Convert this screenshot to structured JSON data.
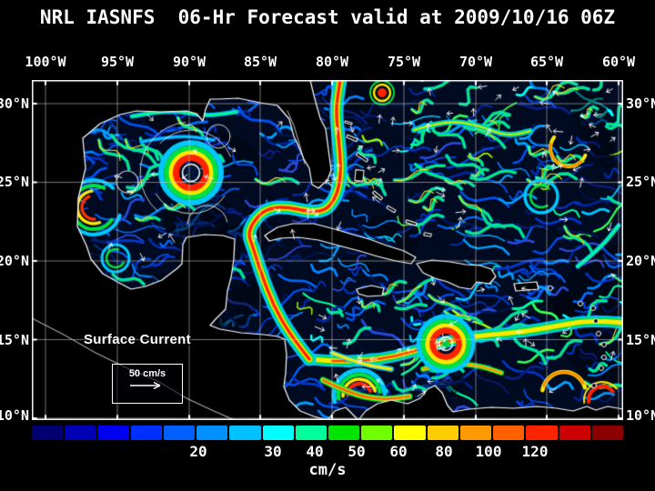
{
  "title": "NRL IASNFS  06-Hr Forecast valid at 2009/10/16 06Z",
  "map": {
    "lon_labels": [
      "100°W",
      "95°W",
      "90°W",
      "85°W",
      "80°W",
      "75°W",
      "70°W",
      "65°W",
      "60°W"
    ],
    "lat_labels": [
      "30°N",
      "25°N",
      "20°N",
      "15°N",
      "10°N"
    ],
    "legend": {
      "title": "Surface Current",
      "scale_value": "50 cm/s"
    }
  },
  "colorbar": {
    "unit": "cm/s",
    "tick_labels": [
      "20",
      "30",
      "40",
      "50",
      "60",
      "80",
      "100",
      "120"
    ],
    "segments": [
      "#000070",
      "#0000b4",
      "#0000f0",
      "#0030ff",
      "#0060ff",
      "#0090ff",
      "#00c0ff",
      "#00ffff",
      "#00ff9c",
      "#00e400",
      "#70ff00",
      "#ffff00",
      "#ffcc00",
      "#ff9900",
      "#ff6000",
      "#ff2400",
      "#cc0000",
      "#8c0000"
    ]
  },
  "colors": {
    "page_background": "#000000",
    "ocean": "#000a20",
    "land": "#000000",
    "coastline": "#ffffff",
    "grid": "#c8c8c8",
    "frame": "#ffffff",
    "text": "#ffffff"
  }
}
